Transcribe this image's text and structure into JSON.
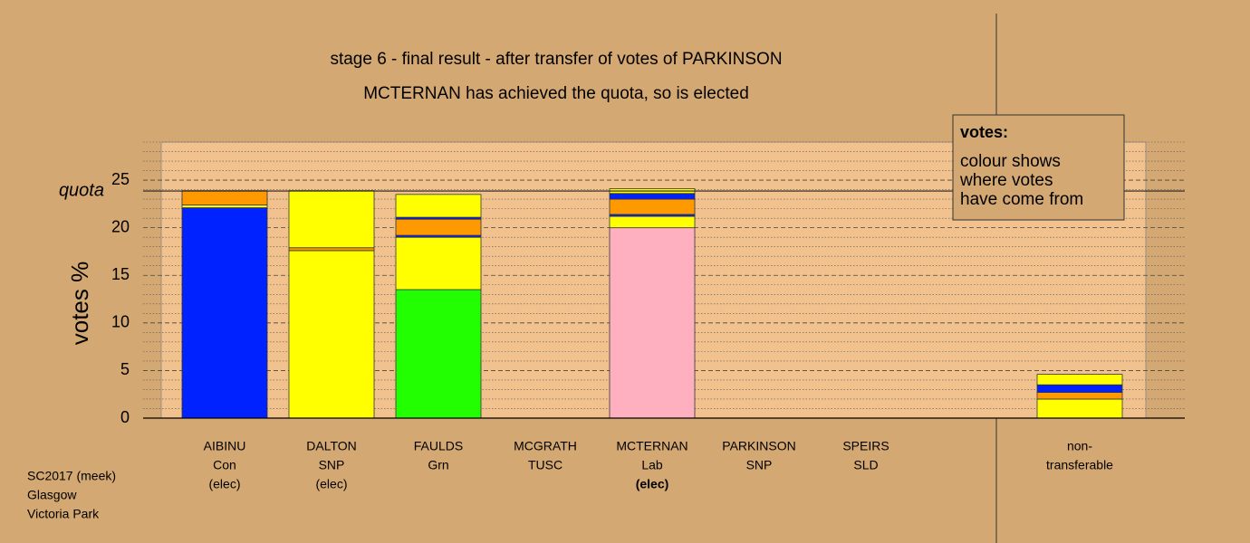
{
  "chart_data": {
    "type": "stacked-bar",
    "title": "stage 6 - final result - after transfer of votes of PARKINSON",
    "subtitle": "MCTERNAN has achieved the quota, so is elected",
    "ylabel": "votes %",
    "ylim": [
      0,
      29
    ],
    "yticks": [
      0,
      5,
      10,
      15,
      20,
      25
    ],
    "minor_yticks": [
      1,
      2,
      3,
      4,
      6,
      7,
      8,
      9,
      11,
      12,
      13,
      14,
      16,
      17,
      18,
      19,
      21,
      22,
      23,
      24,
      26,
      27,
      28,
      29
    ],
    "grid": true,
    "quota": {
      "label": "quota",
      "value": 23.86
    },
    "categories": [
      {
        "label": [
          "AIBINU",
          "Con",
          "(elec)"
        ],
        "segments": [
          {
            "value": 22.1,
            "color": "#0022ff"
          },
          {
            "value": 0.3,
            "color": "#ffff00"
          },
          {
            "value": 1.5,
            "color": "#ff9900"
          }
        ]
      },
      {
        "label": [
          "DALTON",
          "SNP",
          "(elec)"
        ],
        "segments": [
          {
            "value": 17.6,
            "color": "#ffff00"
          },
          {
            "value": 0.3,
            "color": "#ff9900"
          },
          {
            "value": 6.0,
            "color": "#ffff00"
          }
        ]
      },
      {
        "label": [
          "FAULDS",
          "Grn"
        ],
        "segments": [
          {
            "value": 13.5,
            "color": "#22ff00"
          },
          {
            "value": 5.5,
            "color": "#ffff00"
          },
          {
            "value": 0.2,
            "color": "#0022ff"
          },
          {
            "value": 1.7,
            "color": "#ff9900"
          },
          {
            "value": 0.2,
            "color": "#0022ff"
          },
          {
            "value": 2.4,
            "color": "#ffff00"
          }
        ]
      },
      {
        "label": [
          "MCGRATH",
          "TUSC"
        ],
        "segments": []
      },
      {
        "label": [
          "MCTERNAN",
          "Lab",
          "(elec)"
        ],
        "highlight": true,
        "segments": [
          {
            "value": 20.0,
            "color": "#ffb0c0"
          },
          {
            "value": 1.2,
            "color": "#ffff00"
          },
          {
            "value": 0.2,
            "color": "#0022ff"
          },
          {
            "value": 1.6,
            "color": "#ff9900"
          },
          {
            "value": 0.6,
            "color": "#0022ff"
          },
          {
            "value": 0.5,
            "color": "#ffff00"
          }
        ]
      },
      {
        "label": [
          "PARKINSON",
          "SNP"
        ],
        "segments": []
      },
      {
        "label": [
          "SPEIRS",
          "SLD"
        ],
        "segments": []
      },
      {
        "label": [
          "non-",
          "transferable"
        ],
        "separate": true,
        "segments": [
          {
            "value": 2.0,
            "color": "#ffff00"
          },
          {
            "value": 0.7,
            "color": "#ff9900"
          },
          {
            "value": 0.8,
            "color": "#0022ff"
          },
          {
            "value": 1.1,
            "color": "#ffff00"
          }
        ]
      }
    ],
    "legend": {
      "title": "votes:",
      "lines": [
        "colour shows",
        "where votes",
        "have come from"
      ]
    },
    "footer": [
      "SC2017 (meek)",
      "Glasgow",
      "Victoria Park"
    ]
  }
}
